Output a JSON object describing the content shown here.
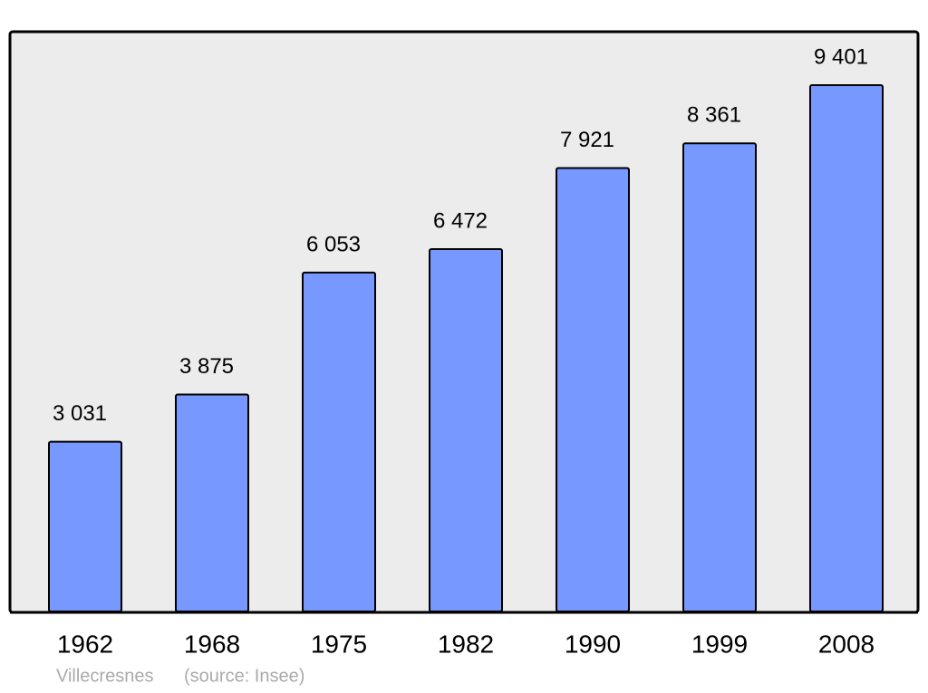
{
  "chart_data": {
    "type": "bar",
    "categories": [
      "1962",
      "1968",
      "1975",
      "1982",
      "1990",
      "1999",
      "2008"
    ],
    "values": [
      3031,
      3875,
      6053,
      6472,
      7921,
      8361,
      9401
    ],
    "value_labels": [
      "3 031",
      "3 875",
      "6 053",
      "6 472",
      "7 921",
      "8 361",
      "9 401"
    ],
    "color": "#7799ff",
    "footer": {
      "place": "Villecresnes",
      "source": "(source: Insee)"
    }
  }
}
